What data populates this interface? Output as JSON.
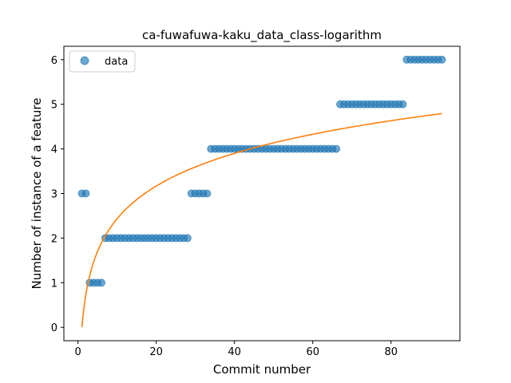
{
  "chart_data": {
    "type": "scatter",
    "title": "ca-fuwafuwa-kaku_data_class-logarithm",
    "xlabel": "Commit number",
    "ylabel": "Number of instance of a feature",
    "xlim": [
      -3.6,
      97.6
    ],
    "ylim": [
      -0.3,
      6.3
    ],
    "x_ticks": [
      0,
      20,
      40,
      60,
      80
    ],
    "y_ticks": [
      0,
      1,
      2,
      3,
      4,
      5,
      6
    ],
    "grid": false,
    "legend_position": "top-left",
    "series": [
      {
        "name": "data",
        "kind": "scatter",
        "color": "#1f77b4",
        "opacity": 0.65,
        "points": [
          [
            1,
            3
          ],
          [
            2,
            3
          ],
          [
            3,
            1
          ],
          [
            4,
            1
          ],
          [
            5,
            1
          ],
          [
            6,
            1
          ],
          [
            7,
            2
          ],
          [
            8,
            2
          ],
          [
            9,
            2
          ],
          [
            10,
            2
          ],
          [
            11,
            2
          ],
          [
            12,
            2
          ],
          [
            13,
            2
          ],
          [
            14,
            2
          ],
          [
            15,
            2
          ],
          [
            16,
            2
          ],
          [
            17,
            2
          ],
          [
            18,
            2
          ],
          [
            19,
            2
          ],
          [
            20,
            2
          ],
          [
            21,
            2
          ],
          [
            22,
            2
          ],
          [
            23,
            2
          ],
          [
            24,
            2
          ],
          [
            25,
            2
          ],
          [
            26,
            2
          ],
          [
            27,
            2
          ],
          [
            28,
            2
          ],
          [
            29,
            3
          ],
          [
            30,
            3
          ],
          [
            31,
            3
          ],
          [
            32,
            3
          ],
          [
            33,
            3
          ],
          [
            34,
            4
          ],
          [
            35,
            4
          ],
          [
            36,
            4
          ],
          [
            37,
            4
          ],
          [
            38,
            4
          ],
          [
            39,
            4
          ],
          [
            40,
            4
          ],
          [
            41,
            4
          ],
          [
            42,
            4
          ],
          [
            43,
            4
          ],
          [
            44,
            4
          ],
          [
            45,
            4
          ],
          [
            46,
            4
          ],
          [
            47,
            4
          ],
          [
            48,
            4
          ],
          [
            49,
            4
          ],
          [
            50,
            4
          ],
          [
            51,
            4
          ],
          [
            52,
            4
          ],
          [
            53,
            4
          ],
          [
            54,
            4
          ],
          [
            55,
            4
          ],
          [
            56,
            4
          ],
          [
            57,
            4
          ],
          [
            58,
            4
          ],
          [
            59,
            4
          ],
          [
            60,
            4
          ],
          [
            61,
            4
          ],
          [
            62,
            4
          ],
          [
            63,
            4
          ],
          [
            64,
            4
          ],
          [
            65,
            4
          ],
          [
            66,
            4
          ],
          [
            67,
            5
          ],
          [
            68,
            5
          ],
          [
            69,
            5
          ],
          [
            70,
            5
          ],
          [
            71,
            5
          ],
          [
            72,
            5
          ],
          [
            73,
            5
          ],
          [
            74,
            5
          ],
          [
            75,
            5
          ],
          [
            76,
            5
          ],
          [
            77,
            5
          ],
          [
            78,
            5
          ],
          [
            79,
            5
          ],
          [
            80,
            5
          ],
          [
            81,
            5
          ],
          [
            82,
            5
          ],
          [
            83,
            5
          ],
          [
            84,
            6
          ],
          [
            85,
            6
          ],
          [
            86,
            6
          ],
          [
            87,
            6
          ],
          [
            88,
            6
          ],
          [
            89,
            6
          ],
          [
            90,
            6
          ],
          [
            91,
            6
          ],
          [
            92,
            6
          ],
          [
            93,
            6
          ]
        ]
      },
      {
        "kind": "fit-line",
        "color": "#ff7f0e",
        "model": "y = a*ln(x)",
        "a": 1.057,
        "x_range": [
          1,
          93
        ]
      }
    ]
  }
}
